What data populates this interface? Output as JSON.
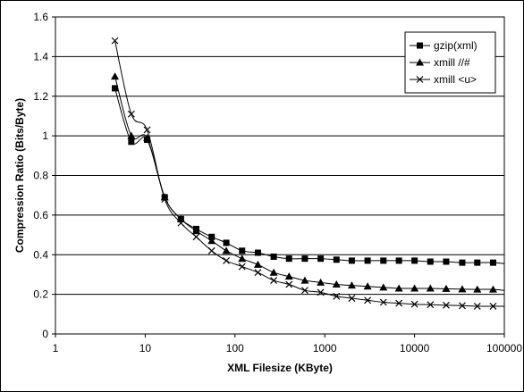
{
  "chart_data": {
    "type": "line",
    "title": "",
    "xlabel": "XML Filesize (KByte)",
    "ylabel": "Compression Ratio (Bits/Byte)",
    "xscale": "log",
    "xlim": [
      1,
      100000
    ],
    "ylim": [
      0,
      1.6
    ],
    "x_ticks": [
      1,
      10,
      100,
      1000,
      10000,
      100000
    ],
    "x_tick_labels": [
      "1",
      "10",
      "100",
      "1000",
      "10000",
      "100000"
    ],
    "y_ticks": [
      0,
      0.2,
      0.4,
      0.6,
      0.8,
      1,
      1.2,
      1.4,
      1.6
    ],
    "y_tick_labels": [
      "0",
      "0.2",
      "0.4",
      "0.6",
      "0.8",
      "1",
      "1.2",
      "1.4",
      "1.6"
    ],
    "grid": "horizontal",
    "legend_position": "top-right",
    "series": [
      {
        "name": "gzip(xml)",
        "marker": "square",
        "color": "#000000",
        "x": [
          4.6,
          7,
          10.5,
          16.5,
          25,
          37,
          55,
          80,
          120,
          180,
          270,
          400,
          600,
          900,
          1350,
          2000,
          3000,
          4500,
          6700,
          10000,
          15000,
          22500,
          34000,
          50000,
          75000
        ],
        "y": [
          1.24,
          0.97,
          0.98,
          0.69,
          0.58,
          0.53,
          0.49,
          0.46,
          0.42,
          0.41,
          0.39,
          0.38,
          0.38,
          0.38,
          0.375,
          0.37,
          0.37,
          0.37,
          0.37,
          0.37,
          0.365,
          0.365,
          0.36,
          0.36,
          0.36
        ],
        "line_end": [
          100000,
          0.355
        ]
      },
      {
        "name": "xmill //#",
        "marker": "triangle",
        "color": "#000000",
        "x": [
          4.6,
          7,
          10.5,
          16.5,
          25,
          37,
          55,
          80,
          120,
          180,
          270,
          400,
          600,
          900,
          1350,
          2000,
          3000,
          4500,
          6700,
          10000,
          15000,
          22500,
          34000,
          50000,
          75000
        ],
        "y": [
          1.3,
          1.0,
          0.99,
          0.69,
          0.58,
          0.52,
          0.47,
          0.42,
          0.38,
          0.35,
          0.31,
          0.29,
          0.27,
          0.26,
          0.25,
          0.245,
          0.24,
          0.235,
          0.23,
          0.23,
          0.23,
          0.228,
          0.226,
          0.225,
          0.225
        ],
        "line_end": [
          100000,
          0.22
        ]
      },
      {
        "name": "xmill <u>",
        "marker": "x",
        "color": "#000000",
        "x": [
          4.6,
          7,
          10.5,
          16.5,
          25,
          37,
          55,
          80,
          120,
          180,
          270,
          400,
          600,
          900,
          1350,
          2000,
          3000,
          4500,
          6700,
          10000,
          15000,
          22500,
          34000,
          50000,
          75000
        ],
        "y": [
          1.48,
          1.11,
          1.03,
          0.68,
          0.56,
          0.49,
          0.42,
          0.37,
          0.34,
          0.31,
          0.27,
          0.25,
          0.22,
          0.21,
          0.19,
          0.18,
          0.17,
          0.16,
          0.155,
          0.15,
          0.148,
          0.145,
          0.143,
          0.14,
          0.14
        ],
        "line_end": [
          100000,
          0.14
        ]
      }
    ]
  }
}
